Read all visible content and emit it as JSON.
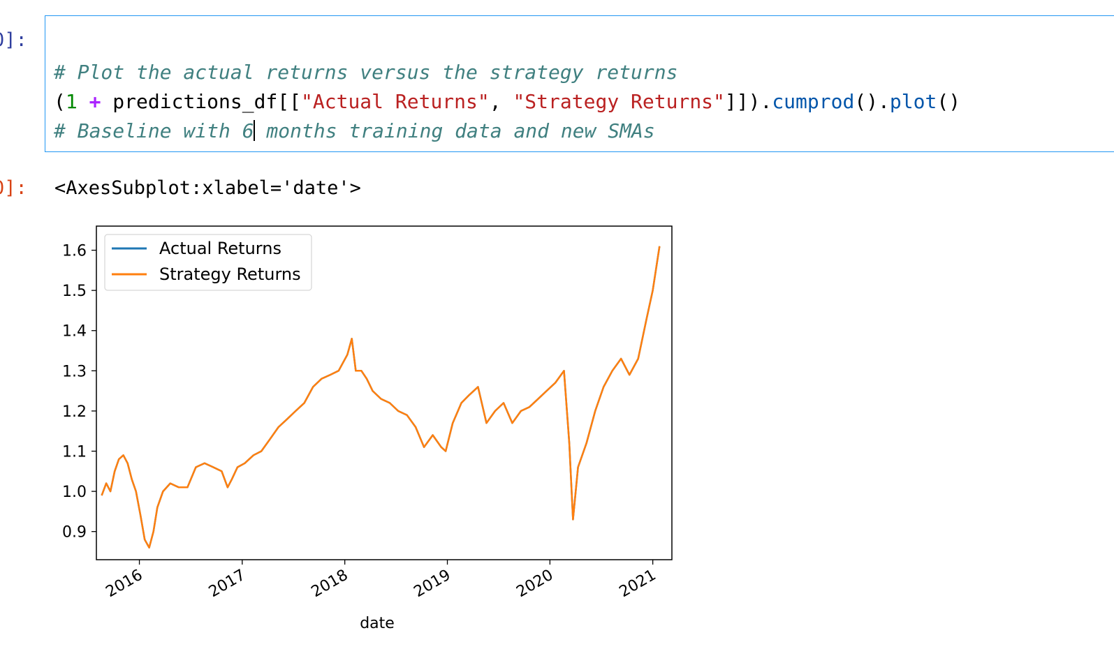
{
  "cell": {
    "in_prompt": "0]:",
    "out_prompt": "0]:",
    "code": {
      "comment1": "# Plot the actual returns versus the strategy returns",
      "line2": {
        "open": "(",
        "one": "1",
        "plus": "+",
        "df": " predictions_df[[",
        "str1": "\"Actual Returns\"",
        "comma": ", ",
        "str2": "\"Strategy Returns\"",
        "close": "]]).",
        "fn1": "cumprod",
        "mid": "().",
        "fn2": "plot",
        "end": "()"
      },
      "comment3a": "# Baseline with 6",
      "comment3b": " months training data and new SMAs"
    },
    "output_text": "<AxesSubplot:xlabel='date'>"
  },
  "colors": {
    "actual": "#1f77b4",
    "strategy": "#ff7f0e",
    "prompt_in": "#303f9f",
    "prompt_out": "#d84315"
  },
  "chart_data": {
    "type": "line",
    "xlabel": "date",
    "ylabel": "",
    "xlim": [
      "2015-08-01",
      "2021-03-10"
    ],
    "ylim": [
      0.83,
      1.66
    ],
    "yticks": [
      0.9,
      1.0,
      1.1,
      1.2,
      1.3,
      1.4,
      1.5,
      1.6
    ],
    "ytick_labels": [
      "0.9",
      "1.0",
      "1.1",
      "1.2",
      "1.3",
      "1.4",
      "1.5",
      "1.6"
    ],
    "xticks": [
      "2016-01-01",
      "2017-01-01",
      "2018-01-01",
      "2019-01-01",
      "2020-01-01",
      "2021-01-01"
    ],
    "xtick_labels": [
      "2016",
      "2017",
      "2018",
      "2019",
      "2020",
      "2021"
    ],
    "legend": {
      "position": "upper-left"
    },
    "series": [
      {
        "name": "Actual Returns",
        "x": [
          "2015-08-20",
          "2015-09-05",
          "2015-09-20",
          "2015-10-05",
          "2015-10-20",
          "2015-11-05",
          "2015-11-20",
          "2015-12-05",
          "2015-12-20",
          "2016-01-05",
          "2016-01-20",
          "2016-02-05",
          "2016-02-20",
          "2016-03-05",
          "2016-03-25",
          "2016-04-20",
          "2016-05-20",
          "2016-06-20",
          "2016-07-20",
          "2016-08-20",
          "2016-09-20",
          "2016-10-20",
          "2016-11-10",
          "2016-11-25",
          "2016-12-15",
          "2017-01-10",
          "2017-02-10",
          "2017-03-10",
          "2017-04-10",
          "2017-05-10",
          "2017-06-10",
          "2017-07-10",
          "2017-08-10",
          "2017-09-10",
          "2017-10-10",
          "2017-11-10",
          "2017-12-10",
          "2018-01-10",
          "2018-01-26",
          "2018-02-09",
          "2018-03-01",
          "2018-03-20",
          "2018-04-10",
          "2018-05-10",
          "2018-06-10",
          "2018-07-10",
          "2018-08-10",
          "2018-09-10",
          "2018-10-10",
          "2018-11-10",
          "2018-12-10",
          "2018-12-26",
          "2019-01-20",
          "2019-02-20",
          "2019-03-20",
          "2019-04-20",
          "2019-05-20",
          "2019-06-20",
          "2019-07-20",
          "2019-08-20",
          "2019-09-20",
          "2019-10-20",
          "2019-11-20",
          "2019-12-20",
          "2020-01-20",
          "2020-02-20",
          "2020-03-10",
          "2020-03-23",
          "2020-04-10",
          "2020-05-10",
          "2020-06-10",
          "2020-07-10",
          "2020-08-10",
          "2020-09-10",
          "2020-10-10",
          "2020-11-10",
          "2020-12-10",
          "2021-01-01",
          "2021-01-25"
        ],
        "y": [
          0.99,
          1.02,
          1.0,
          1.05,
          1.08,
          1.09,
          1.07,
          1.03,
          1.0,
          0.94,
          0.88,
          0.86,
          0.9,
          0.96,
          1.0,
          1.02,
          1.01,
          1.01,
          1.06,
          1.07,
          1.06,
          1.05,
          1.01,
          1.03,
          1.06,
          1.07,
          1.09,
          1.1,
          1.13,
          1.16,
          1.18,
          1.2,
          1.22,
          1.26,
          1.28,
          1.29,
          1.3,
          1.34,
          1.38,
          1.3,
          1.3,
          1.28,
          1.25,
          1.23,
          1.22,
          1.2,
          1.19,
          1.16,
          1.11,
          1.14,
          1.11,
          1.1,
          1.17,
          1.22,
          1.24,
          1.26,
          1.17,
          1.2,
          1.22,
          1.17,
          1.2,
          1.21,
          1.23,
          1.25,
          1.27,
          1.3,
          1.12,
          0.93,
          1.06,
          1.12,
          1.2,
          1.26,
          1.3,
          1.33,
          1.29,
          1.33,
          1.43,
          1.5,
          1.61
        ]
      },
      {
        "name": "Strategy Returns",
        "x": [
          "2015-08-20",
          "2015-09-05",
          "2015-09-20",
          "2015-10-05",
          "2015-10-20",
          "2015-11-05",
          "2015-11-20",
          "2015-12-05",
          "2015-12-20",
          "2016-01-05",
          "2016-01-20",
          "2016-02-05",
          "2016-02-20",
          "2016-03-05",
          "2016-03-25",
          "2016-04-20",
          "2016-05-20",
          "2016-06-20",
          "2016-07-20",
          "2016-08-20",
          "2016-09-20",
          "2016-10-20",
          "2016-11-10",
          "2016-11-25",
          "2016-12-15",
          "2017-01-10",
          "2017-02-10",
          "2017-03-10",
          "2017-04-10",
          "2017-05-10",
          "2017-06-10",
          "2017-07-10",
          "2017-08-10",
          "2017-09-10",
          "2017-10-10",
          "2017-11-10",
          "2017-12-10",
          "2018-01-10",
          "2018-01-26",
          "2018-02-09",
          "2018-03-01",
          "2018-03-20",
          "2018-04-10",
          "2018-05-10",
          "2018-06-10",
          "2018-07-10",
          "2018-08-10",
          "2018-09-10",
          "2018-10-10",
          "2018-11-10",
          "2018-12-10",
          "2018-12-26",
          "2019-01-20",
          "2019-02-20",
          "2019-03-20",
          "2019-04-20",
          "2019-05-20",
          "2019-06-20",
          "2019-07-20",
          "2019-08-20",
          "2019-09-20",
          "2019-10-20",
          "2019-11-20",
          "2019-12-20",
          "2020-01-20",
          "2020-02-20",
          "2020-03-10",
          "2020-03-23",
          "2020-04-10",
          "2020-05-10",
          "2020-06-10",
          "2020-07-10",
          "2020-08-10",
          "2020-09-10",
          "2020-10-10",
          "2020-11-10",
          "2020-12-10",
          "2021-01-01",
          "2021-01-25"
        ],
        "y": [
          0.99,
          1.02,
          1.0,
          1.05,
          1.08,
          1.09,
          1.07,
          1.03,
          1.0,
          0.94,
          0.88,
          0.86,
          0.9,
          0.96,
          1.0,
          1.02,
          1.01,
          1.01,
          1.06,
          1.07,
          1.06,
          1.05,
          1.01,
          1.03,
          1.06,
          1.07,
          1.09,
          1.1,
          1.13,
          1.16,
          1.18,
          1.2,
          1.22,
          1.26,
          1.28,
          1.29,
          1.3,
          1.34,
          1.38,
          1.3,
          1.3,
          1.28,
          1.25,
          1.23,
          1.22,
          1.2,
          1.19,
          1.16,
          1.11,
          1.14,
          1.11,
          1.1,
          1.17,
          1.22,
          1.24,
          1.26,
          1.17,
          1.2,
          1.22,
          1.17,
          1.2,
          1.21,
          1.23,
          1.25,
          1.27,
          1.3,
          1.12,
          0.93,
          1.06,
          1.12,
          1.2,
          1.26,
          1.3,
          1.33,
          1.29,
          1.33,
          1.43,
          1.5,
          1.61
        ]
      }
    ]
  }
}
